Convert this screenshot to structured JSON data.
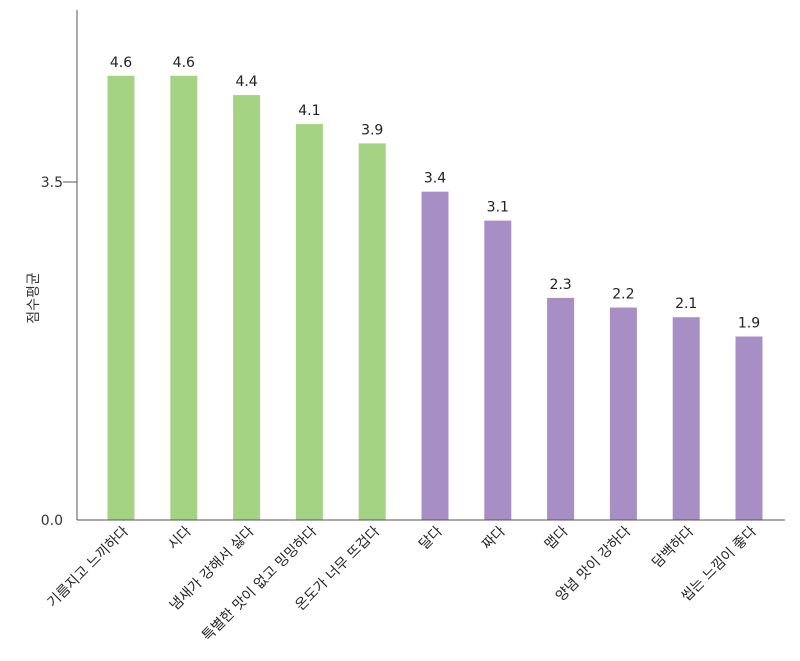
{
  "chart_data": {
    "type": "bar",
    "xlabel": "",
    "ylabel": "점수평균",
    "ylim": [
      0,
      5
    ],
    "yticks": [
      {
        "value": 0.0,
        "label": "0.0"
      },
      {
        "value": 3.5,
        "label": "3.5"
      }
    ],
    "categories": [
      "기름지고 느끼하다",
      "시다",
      "냄새가 강해서 싫다",
      "특별한 맛이 없고 밍밍하다",
      "온도가 너무 뜨겁다",
      "달다",
      "짜다",
      "맵다",
      "양념 맛이 강하다",
      "담백하다",
      "씹는 느낌이 좋다"
    ],
    "values": [
      4.6,
      4.6,
      4.4,
      4.1,
      3.9,
      3.4,
      3.1,
      2.3,
      2.2,
      2.1,
      1.9
    ],
    "value_labels": [
      "4.6",
      "4.6",
      "4.4",
      "4.1",
      "3.9",
      "3.4",
      "3.1",
      "2.3",
      "2.2",
      "2.1",
      "1.9"
    ],
    "bar_colors": [
      "#a5d384",
      "#a5d384",
      "#a5d384",
      "#a5d384",
      "#a5d384",
      "#a78fc6",
      "#a78fc6",
      "#a78fc6",
      "#a78fc6",
      "#a78fc6",
      "#a78fc6"
    ],
    "axis_color": "#555555",
    "grid": false
  }
}
